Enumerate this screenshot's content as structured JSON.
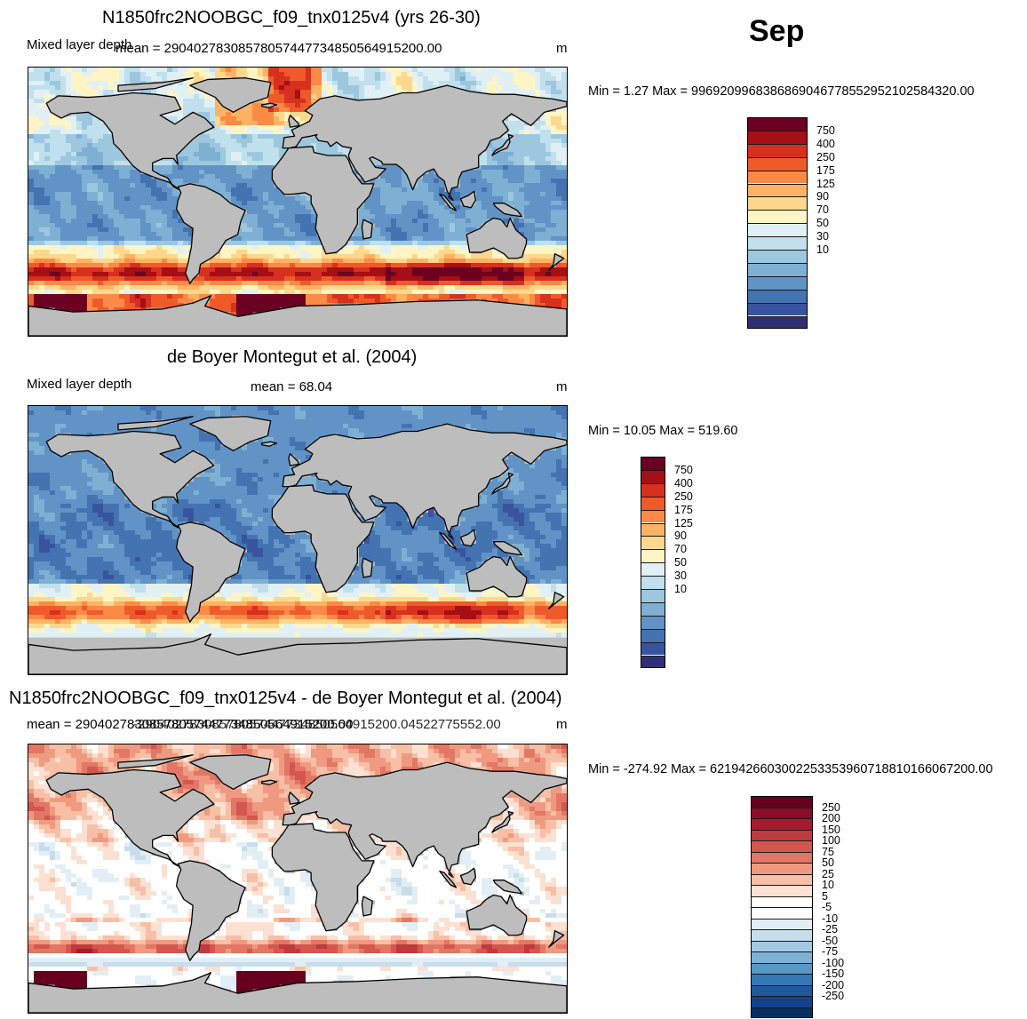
{
  "month": "Sep",
  "panels": [
    {
      "title": "N1850frc2NOOBGC_f09_tnx0125v4 (yrs 26-30)",
      "left_label": "Mixed layer depth",
      "mean": "mean = 290402783085780574477348505649152​00.00",
      "units": "m",
      "minmax": "Min =   1.27 Max = 996920996838686904677855295210258432​0.00",
      "palette": "mld",
      "pattern": "model"
    },
    {
      "title": "de Boyer Montegut et al. (2004)",
      "left_label": "Mixed layer depth",
      "mean": "mean =  68.04",
      "units": "m",
      "minmax": "Min =  10.05 Max = 519.60",
      "palette": "mld",
      "pattern": "obs"
    },
    {
      "title": "N1850frc2NOOBGC_f09_tnx0125v4 - de Boyer Montegut et al. (2004)",
      "left_label": "",
      "mean": "mean = 290402783085780574477348505649152​00.00",
      "mean_overlap": "-290402783085780574477348505649152​00.04522775552.00",
      "units": "m",
      "minmax": "Min = -274.92 Max = 621942660300225335396071881016606720​0.00",
      "palette": "diff",
      "pattern": "diff"
    }
  ],
  "colorbars": {
    "mld": {
      "labels": [
        "750",
        "400",
        "250",
        "175",
        "125",
        "90",
        "70",
        "50",
        "30",
        "10"
      ],
      "colors": [
        "#6b0021",
        "#a50f15",
        "#d7301f",
        "#ef5a2b",
        "#fb8a47",
        "#fdb363",
        "#fdd88c",
        "#fff5c4",
        "#e0f0f5",
        "#bfe0ec",
        "#9cc7df",
        "#7eb0d4",
        "#6193c6",
        "#4473b2",
        "#3a539e",
        "#312f73"
      ]
    },
    "diff": {
      "labels": [
        "250",
        "200",
        "150",
        "100",
        "75",
        "50",
        "25",
        "10",
        "5",
        "-5",
        "-10",
        "-25",
        "-50",
        "-75",
        "-100",
        "-150",
        "-200",
        "-250"
      ],
      "colors": [
        "#67001f",
        "#8c0c25",
        "#a81b2c",
        "#c0393e",
        "#d4574f",
        "#e27766",
        "#ef9a80",
        "#f7bfa5",
        "#fce0d1",
        "#ffffff",
        "#ffffff",
        "#e2eef5",
        "#c7ddec",
        "#a4c9e2",
        "#7fb1d6",
        "#5798c7",
        "#3478b5",
        "#21599f",
        "#14428a",
        "#053061"
      ]
    }
  }
}
